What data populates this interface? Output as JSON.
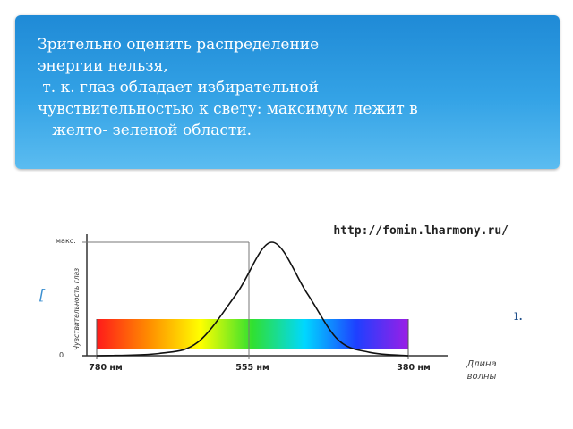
{
  "banner": {
    "lines": [
      "Зрительно оценить распределение",
      "энергии нельзя,",
      " т. к. глаз обладает избирательной",
      "чувствительностью к свету: максимум лежит в",
      "   желто- зеленой области."
    ]
  },
  "stray_left": "[",
  "stray_right": "ı.",
  "figure": {
    "url": "http://fomin.lharmony.ru/",
    "y_max_label": "макс.",
    "y_zero_label": "0",
    "y_axis_label": "Чувствительность глаз",
    "x_axis_label_line1": "Длина",
    "x_axis_label_line2": "волны",
    "spectrum_colors": [
      "#ff1a1a",
      "#ff8c00",
      "#ffff00",
      "#30e030",
      "#00d8ff",
      "#1e40ff",
      "#9b1ee6"
    ]
  },
  "chart_data": {
    "type": "line",
    "x_tick_labels": [
      "780 нм",
      "555 нм",
      "380 нм"
    ],
    "x": [
      780,
      555,
      380
    ],
    "xlim": [
      780,
      380
    ],
    "y_labels": [
      "0",
      "макс."
    ],
    "series": [
      {
        "x": [
          780,
          700,
          650,
          600,
          555,
          510,
          470,
          430,
          380
        ],
        "values": [
          0,
          0.02,
          0.12,
          0.55,
          1.0,
          0.55,
          0.14,
          0.03,
          0
        ]
      }
    ]
  }
}
